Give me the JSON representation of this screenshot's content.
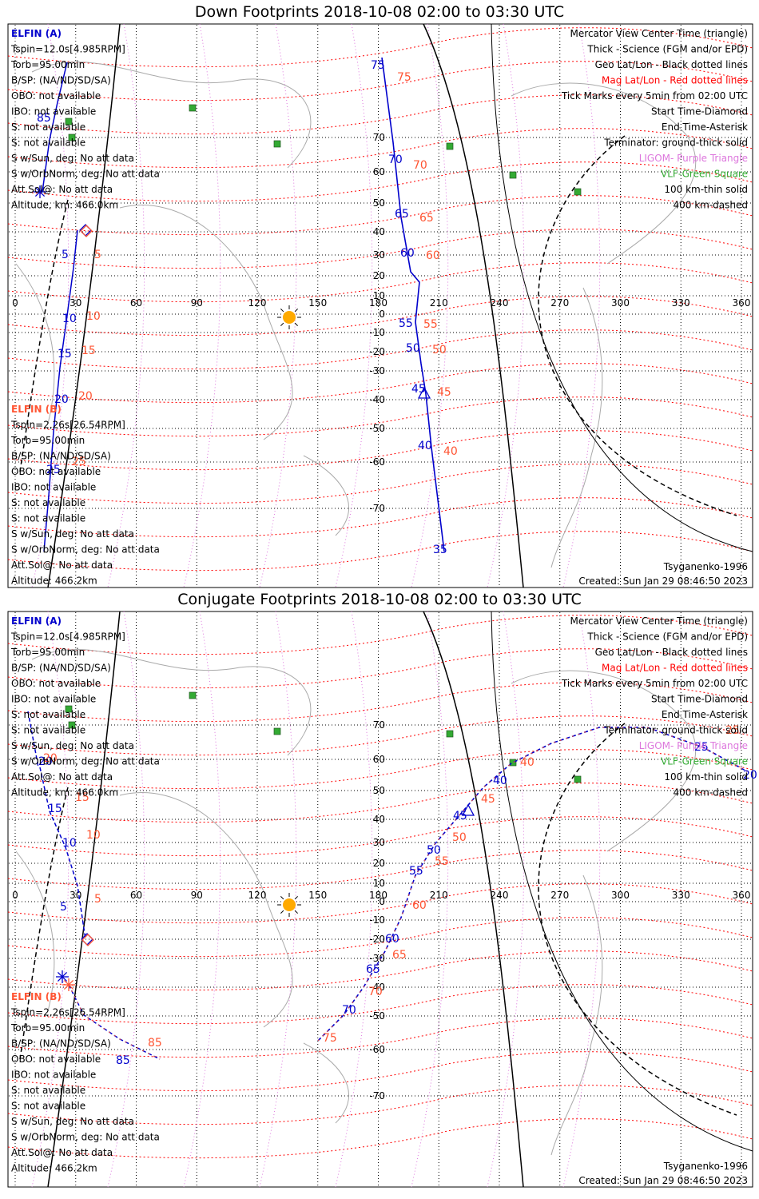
{
  "panels": [
    {
      "title": "Down Footprints 2018-10-08 02:00 to 03:30 UTC",
      "sat_a": {
        "name": "ELFIN (A)",
        "tspin": "Tspin=12.0s[4.985RPM]",
        "torb": "Torb=95.00min",
        "bsp": "B/SP: (NA/ND/SD/SA)",
        "obo": "OBO: not available",
        "ibo": "IBO: not available",
        "s1": "S: not available",
        "s2": "S: not available",
        "sun": "S w/Sun, deg: No att data",
        "orbnorm": "S w/OrbNorm, deg: No att data",
        "attsol": "Att.Sol@: No att data",
        "altitude": "Altitude, km: 466.0km"
      },
      "sat_b": {
        "name": "ELFIN (B)",
        "tspin": "Tspin=2.26s[26.54RPM]",
        "torb": "Torb=95.00min",
        "bsp": "B/SP: (NA/ND/SD/SA)",
        "obo": "OBO: not available",
        "ibo": "IBO: not available",
        "s1": "S: not available",
        "s2": "S: not available",
        "sun": "S w/Sun, deg: No att data",
        "orbnorm": "S w/OrbNorm, deg: No att data",
        "attsol": "Att.Sol@: No att data",
        "altitude": "Altitude: 466.2km"
      },
      "model": "Tsyganenko-1996",
      "created": "Created: Sun Jan 29 08:46:50 2023"
    },
    {
      "title": "Conjugate Footprints 2018-10-08 02:00 to 03:30 UTC",
      "sat_a": {
        "name": "ELFIN (A)",
        "tspin": "Tspin=12.0s[4.985RPM]",
        "torb": "Torb=95.00min",
        "bsp": "B/SP: (NA/ND/SD/SA)",
        "obo": "OBO: not available",
        "ibo": "IBO: not available",
        "s1": "S: not available",
        "s2": "S: not available",
        "sun": "S w/Sun, deg: No att data",
        "orbnorm": "S w/OrbNorm, deg: No att data",
        "attsol": "Att.Sol@: No att data",
        "altitude": "Altitude, km: 466.0km"
      },
      "sat_b": {
        "name": "ELFIN (B)",
        "tspin": "Tspin=2.26s[26.54RPM]",
        "torb": "Torb=95.00min",
        "bsp": "B/SP: (NA/ND/SD/SA)",
        "obo": "OBO: not available",
        "ibo": "IBO: not available",
        "s1": "S: not available",
        "s2": "S: not available",
        "sun": "S w/Sun, deg: No att data",
        "orbnorm": "S w/OrbNorm, deg: No att data",
        "attsol": "Att.Sol@: No att data",
        "altitude": "Altitude: 466.2km"
      },
      "model": "Tsyganenko-1996",
      "created": "Created: Sun Jan 29 08:46:50 2023"
    }
  ],
  "legend": [
    {
      "text": "Mercator View Center Time (triangle)",
      "color": "#000000"
    },
    {
      "text": "Thick - Science (FGM and/or EPD)",
      "color": "#000000"
    },
    {
      "text": "Geo Lat/Lon - Black dotted lines",
      "color": "#000000"
    },
    {
      "text": "Mag Lat/Lon - Red dotted lines",
      "color": "#ff0000"
    },
    {
      "text": "Tick Marks every 5min from 02:00 UTC",
      "color": "#000000"
    },
    {
      "text": "Start Time-Diamond",
      "color": "#000000"
    },
    {
      "text": "End Time-Asterisk",
      "color": "#000000"
    },
    {
      "text": "Terminator: ground-thick solid",
      "color": "#000000"
    },
    {
      "text": "LIGOM- Purple Triangle",
      "color": "#dd77dd"
    },
    {
      "text": "VLF-Green Square",
      "color": "#33aa33"
    },
    {
      "text": "100 km-thin solid",
      "color": "#000000"
    },
    {
      "text": "400 km-dashed",
      "color": "#000000"
    }
  ],
  "map": {
    "lon_ticks": [
      "0",
      "30",
      "60",
      "90",
      "120",
      "150",
      "180",
      "210",
      "240",
      "270",
      "300",
      "330",
      "360"
    ],
    "lat_ticks": [
      "70",
      "60",
      "50",
      "40",
      "30",
      "20",
      "10",
      "0",
      "-10",
      "-20",
      "-30",
      "-40",
      "-50",
      "-60",
      "-70"
    ]
  },
  "colors": {
    "sat_a": "#0000cc",
    "sat_b": "#ff5533",
    "geo_grid": "#000000",
    "mag_grid": "#ff0000",
    "vlf": "#33aa33",
    "ligo": "#dd77dd",
    "sun": "#ffaa00"
  }
}
